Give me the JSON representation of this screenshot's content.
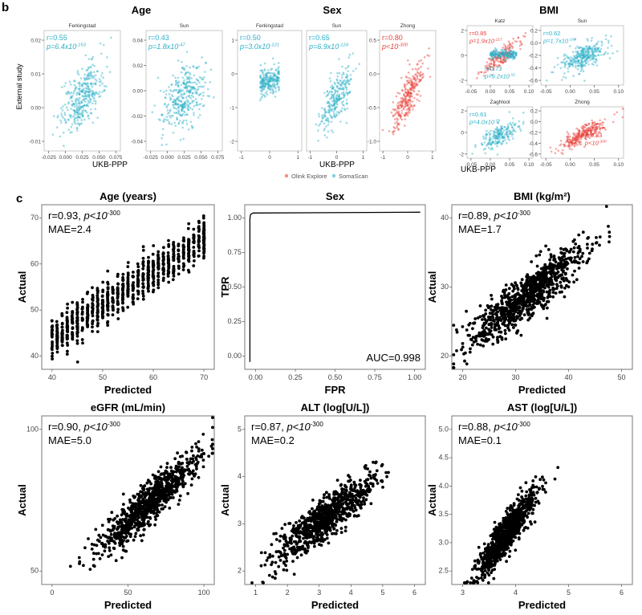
{
  "panel_labels": {
    "b": "b",
    "c": "c"
  },
  "colors": {
    "teal": "#2bb0c8",
    "red": "#e8413a",
    "black": "#000000",
    "frame": "#555555"
  },
  "panel_b": {
    "group_titles": [
      "Age",
      "Sex",
      "BMI"
    ],
    "x_axis_label": "UKB-PPP",
    "y_axis_label": "External study",
    "legend": [
      {
        "label": "Olink Explore",
        "color": "#e8413a"
      },
      {
        "label": "SomaScan",
        "color": "#2bb0c8"
      }
    ]
  },
  "chart_data": [
    {
      "id": "b_age_ferkingstad",
      "type": "scatter",
      "title": "Ferkingstad",
      "xlim": [
        -0.04,
        0.08
      ],
      "ylim": [
        -0.013,
        0.03
      ],
      "xticks": [
        "-0.025",
        "0.000",
        "0.025",
        "0.050",
        "0.075"
      ],
      "yticks": [
        "0.02",
        "0.01",
        "0.00",
        "-0.01"
      ],
      "annotations": [
        {
          "color": "teal",
          "r": "r=0.55",
          "p": "p=6.4x10",
          "p_exp": "-153"
        }
      ],
      "series": [
        {
          "name": "SomaScan",
          "color": "teal",
          "r": 0.55,
          "n": 350
        }
      ]
    },
    {
      "id": "b_age_sun",
      "type": "scatter",
      "title": "Sun",
      "xlim": [
        -0.04,
        0.08
      ],
      "ylim": [
        -0.045,
        0.045
      ],
      "xticks": [
        "-0.025",
        "0.000",
        "0.025",
        "0.050",
        "0.075"
      ],
      "yticks": [
        "0.04",
        "0.02",
        "0.00",
        "-0.02",
        "-0.04"
      ],
      "annotations": [
        {
          "color": "teal",
          "r": "r=0.43",
          "p": "p=1.8x10",
          "p_exp": "-47"
        }
      ],
      "series": [
        {
          "name": "SomaScan",
          "color": "teal",
          "r": 0.43,
          "n": 350
        }
      ]
    },
    {
      "id": "b_sex_ferkingstad",
      "type": "scatter",
      "title": "Ferkingstad",
      "xlim": [
        -1.5,
        1.5
      ],
      "ylim": [
        -2.6,
        1.6
      ],
      "xticks": [
        "-1",
        "0",
        "1"
      ],
      "yticks": [
        "1",
        "0",
        "-1",
        "-2"
      ],
      "annotations": [
        {
          "color": "teal",
          "r": "r=0.50",
          "p": "p=3.0x10",
          "p_exp": "-121"
        }
      ],
      "series": [
        {
          "name": "SomaScan",
          "color": "teal",
          "r": 0.5,
          "n": 220
        }
      ]
    },
    {
      "id": "b_sex_sun",
      "type": "scatter",
      "title": "Sun",
      "xlim": [
        -1.5,
        1.5
      ],
      "ylim": [
        -2.6,
        1.6
      ],
      "xticks": [
        "-1",
        "0",
        "1"
      ],
      "yticks": [],
      "annotations": [
        {
          "color": "teal",
          "r": "r=0.65",
          "p": "p=6.9x10",
          "p_exp": "-124"
        }
      ],
      "series": [
        {
          "name": "SomaScan",
          "color": "teal",
          "r": 0.65,
          "n": 260
        }
      ]
    },
    {
      "id": "b_sex_zhong",
      "type": "scatter",
      "title": "Zhong",
      "xlim": [
        -1.5,
        1.5
      ],
      "ylim": [
        -1.2,
        1.2
      ],
      "xticks": [
        "-1",
        "0",
        "1"
      ],
      "yticks": [
        "0.5",
        "0.0",
        "-0.5",
        "-1.0"
      ],
      "annotations": [
        {
          "color": "red",
          "r": "r=0.80",
          "p": "p<10",
          "p_exp": "-300"
        }
      ],
      "series": [
        {
          "name": "Olink Explore",
          "color": "red",
          "r": 0.8,
          "n": 280
        }
      ]
    },
    {
      "id": "b_bmi_katz",
      "type": "scatter",
      "title": "Katz",
      "xlim": [
        -0.08,
        0.16
      ],
      "ylim": [
        -2.5,
        3.0
      ],
      "xticks": [
        "-0.05",
        "0.00",
        "0.05",
        "0.10"
      ],
      "yticks": [
        "2",
        "0",
        "-2"
      ],
      "annotations": [
        {
          "color": "red",
          "r": "r=0.85",
          "p": "p=1.9x10",
          "p_exp": "-217"
        },
        {
          "color": "teal",
          "r": "r=0.73",
          "p": "p=9.2x10",
          "p_exp": "-52"
        }
      ],
      "series": [
        {
          "name": "Olink Explore",
          "color": "red",
          "r": 0.85,
          "n": 180
        },
        {
          "name": "SomaScan",
          "color": "teal",
          "r": 0.73,
          "n": 160
        }
      ]
    },
    {
      "id": "b_bmi_sun",
      "type": "scatter",
      "title": "Sun",
      "xlim": [
        -0.08,
        0.16
      ],
      "ylim": [
        -0.8,
        0.4
      ],
      "xticks": [
        "-0.05",
        "0.00",
        "0.05",
        "0.10"
      ],
      "yticks": [
        "0.2",
        "0.0",
        "-0.2",
        "-0.4",
        "-0.6"
      ],
      "annotations": [
        {
          "color": "teal",
          "r": "r=0.62",
          "p": "p=1.7x10",
          "p_exp": "-108"
        }
      ],
      "series": [
        {
          "name": "SomaScan",
          "color": "teal",
          "r": 0.62,
          "n": 300
        }
      ]
    },
    {
      "id": "b_bmi_zaghlool",
      "type": "scatter",
      "title": "Zaghlool",
      "xlim": [
        -0.08,
        0.16
      ],
      "ylim": [
        -2.5,
        2.5
      ],
      "xticks": [
        "-0.05",
        "0.00",
        "0.05",
        "0.10"
      ],
      "yticks": [
        "2",
        "0",
        "-2"
      ],
      "annotations": [
        {
          "color": "teal",
          "r": "r=0.61",
          "p": "p=4.0x10",
          "p_exp": "-39"
        }
      ],
      "series": [
        {
          "name": "SomaScan",
          "color": "teal",
          "r": 0.61,
          "n": 200
        }
      ]
    },
    {
      "id": "b_bmi_zhong",
      "type": "scatter",
      "title": "Zhong",
      "xlim": [
        -0.08,
        0.16
      ],
      "ylim": [
        -0.75,
        0.25
      ],
      "xticks": [
        "-0.05",
        "0.00",
        "0.05",
        "0.10"
      ],
      "yticks": [
        "0.2",
        "0.0",
        "-0.2",
        "-0.4",
        "-0.6"
      ],
      "annotations": [
        {
          "color": "red",
          "r": "r=0.83",
          "p": "p<10",
          "p_exp": "-300"
        }
      ],
      "series": [
        {
          "name": "Olink Explore",
          "color": "red",
          "r": 0.83,
          "n": 280
        }
      ]
    },
    {
      "id": "c_age",
      "type": "scatter",
      "title": "Age (years)",
      "xlabel": "Predicted",
      "ylabel": "Actual",
      "xlim": [
        38,
        72
      ],
      "ylim": [
        33,
        79
      ],
      "xticks": [
        "40",
        "50",
        "60",
        "70"
      ],
      "yticks": [
        "70",
        "60",
        "50",
        "40"
      ],
      "annotations": [
        {
          "r": "r=0.93, ",
          "p": "p<10",
          "p_exp": "-300",
          "mae": "MAE=2.4"
        }
      ],
      "series": [
        {
          "name": "data",
          "color": "black",
          "r": 0.93,
          "n": 900
        }
      ]
    },
    {
      "id": "c_sex",
      "type": "line",
      "title": "Sex",
      "xlabel": "FPR",
      "ylabel": "TPR",
      "xlim": [
        -0.03,
        1.03
      ],
      "ylim": [
        -0.05,
        1.05
      ],
      "xticks": [
        "0.00",
        "0.25",
        "0.50",
        "0.75",
        "1.00"
      ],
      "yticks": [
        "1.00",
        "0.75",
        "0.50",
        "0.25",
        "0.00"
      ],
      "annotations": [
        {
          "auc": "AUC=0.998"
        }
      ],
      "series": [
        {
          "name": "ROC",
          "color": "black",
          "x": [
            0.0,
            0.0,
            0.002,
            0.005,
            0.01,
            0.02,
            1.0
          ],
          "y": [
            0.0,
            0.95,
            0.975,
            0.985,
            0.99,
            0.995,
            1.0
          ]
        }
      ]
    },
    {
      "id": "c_bmi",
      "type": "scatter",
      "title": "BMI (kg/m²)",
      "xlabel": "Predicted",
      "ylabel": "Actual",
      "xlim": [
        12,
        59
      ],
      "ylim": [
        12,
        45
      ],
      "xticks": [
        "20",
        "30",
        "40",
        "50"
      ],
      "yticks": [
        "40",
        "30",
        "20"
      ],
      "annotations": [
        {
          "r": "r=0.89, ",
          "p": "p<10",
          "p_exp": "-300",
          "mae": "MAE=1.7"
        }
      ],
      "series": [
        {
          "name": "data",
          "color": "black",
          "r": 0.89,
          "n": 900
        }
      ]
    },
    {
      "id": "c_egfr",
      "type": "scatter",
      "title": "eGFR (mL/min)",
      "xlabel": "Predicted",
      "ylabel": "Actual",
      "xlim": [
        0,
        145
      ],
      "ylim": [
        12,
        137
      ],
      "xticks": [
        "0",
        "50",
        "100"
      ],
      "yticks": [
        "100",
        "50"
      ],
      "annotations": [
        {
          "r": "r=0.90, ",
          "p": "p<10",
          "p_exp": "-300",
          "mae": "MAE=5.0"
        }
      ],
      "series": [
        {
          "name": "data",
          "color": "black",
          "r": 0.9,
          "n": 900
        }
      ]
    },
    {
      "id": "c_alt",
      "type": "scatter",
      "title": "ALT (log[U/L])",
      "xlabel": "Predicted",
      "ylabel": "Actual",
      "xlim": [
        1,
        6.3
      ],
      "ylim": [
        1.7,
        5.4
      ],
      "xticks": [
        "1",
        "2",
        "3",
        "4",
        "5",
        "6"
      ],
      "yticks": [
        "5",
        "4",
        "3",
        "2"
      ],
      "annotations": [
        {
          "r": "r=0.87, ",
          "p": "p<10",
          "p_exp": "-300",
          "mae": "MAE=0.2"
        }
      ],
      "series": [
        {
          "name": "data",
          "color": "black",
          "r": 0.87,
          "n": 900
        }
      ]
    },
    {
      "id": "c_ast",
      "type": "scatter",
      "title": "AST (log[U/L])",
      "xlabel": "Predicted",
      "ylabel": "Actual",
      "xlim": [
        2,
        6.7
      ],
      "ylim": [
        2.35,
        5.1
      ],
      "xticks": [
        "3",
        "4",
        "5",
        "6"
      ],
      "yticks": [
        "5.0",
        "4.5",
        "4.0",
        "3.5",
        "3.0",
        "2.5"
      ],
      "annotations": [
        {
          "r": "r=0.88, ",
          "p": "p<10",
          "p_exp": "-300",
          "mae": "MAE=0.1"
        }
      ],
      "series": [
        {
          "name": "data",
          "color": "black",
          "r": 0.88,
          "n": 900
        }
      ]
    }
  ]
}
